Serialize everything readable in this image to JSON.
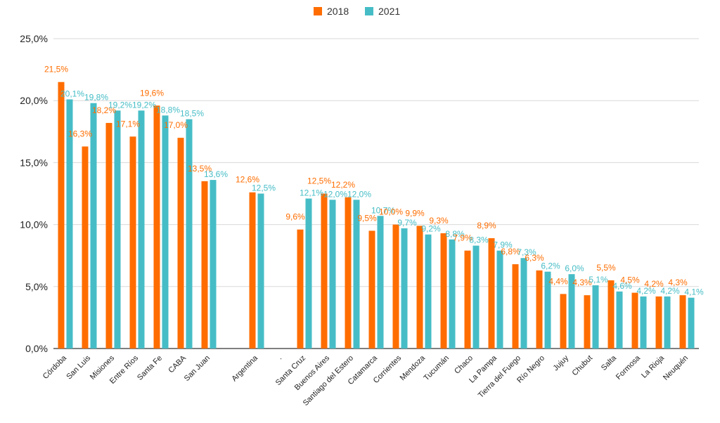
{
  "chart_data": {
    "type": "bar",
    "categories": [
      "Córdoba",
      "San Luis",
      "Misiones",
      "Entre Ríos",
      "Santa Fe",
      "CABA",
      "San Juan",
      "",
      "Argentina",
      ".",
      "Santa Cruz",
      "Buenos Aires",
      "Santiago del Estero",
      "Catamarca",
      "Corrientes",
      "Mendoza",
      "Tucumán",
      "Chaco",
      "La Pampa",
      "Tierra del Fuego",
      "Río Negro",
      "Jujuy",
      "Chubut",
      "Salta",
      "Formosa",
      "La Rioja",
      "Neuquén"
    ],
    "series": [
      {
        "name": "2018",
        "color": "#ff6d00",
        "values": [
          21.5,
          16.3,
          18.2,
          17.1,
          19.6,
          17.0,
          13.5,
          null,
          12.6,
          null,
          9.6,
          12.5,
          12.2,
          9.5,
          10.0,
          9.9,
          9.3,
          7.9,
          8.9,
          6.8,
          6.3,
          4.4,
          4.3,
          5.5,
          4.5,
          4.2,
          4.3
        ],
        "labels": [
          "21,5%",
          "16,3%",
          "18,2%",
          "17,1%",
          "19,6%",
          "17,0%",
          "13,5%",
          "",
          "12,6%",
          "",
          "9,6%",
          "12,5%",
          "12,2%",
          "9,5%",
          "10,0%",
          "9,9%",
          "9,3%",
          "7,9%",
          "8,9%",
          "6,8%",
          "6,3%",
          "4,4%",
          "4,3%",
          "5,5%",
          "4,5%",
          "4,2%",
          "4,3%"
        ]
      },
      {
        "name": "2021",
        "color": "#46bdc6",
        "values": [
          20.1,
          19.8,
          19.2,
          19.2,
          18.8,
          18.5,
          13.6,
          null,
          12.5,
          null,
          12.1,
          12.0,
          12.0,
          10.7,
          9.7,
          9.2,
          8.8,
          8.3,
          7.9,
          7.3,
          6.2,
          6.0,
          5.1,
          4.6,
          4.2,
          4.2,
          4.1
        ],
        "labels": [
          "20,1%",
          "19,8%",
          "19,2%",
          "19,2%",
          "18,8%",
          "18,5%",
          "13,6%",
          "",
          "12,5%",
          "",
          "12,1%",
          "12,0%",
          "12,0%",
          "10,7%",
          "9,7%",
          "9,2%",
          "8,8%",
          "8,3%",
          "7,9%",
          "7,3%",
          "6,2%",
          "6,0%",
          "5,1%",
          "4,6%",
          "4,2%",
          "4,2%",
          "4,1%"
        ]
      }
    ],
    "yticks": [
      "0,0%",
      "5,0%",
      "10,0%",
      "15,0%",
      "20,0%",
      "25,0%"
    ],
    "ylim": [
      0,
      25
    ],
    "grid": true,
    "legend_position": "top-center"
  }
}
